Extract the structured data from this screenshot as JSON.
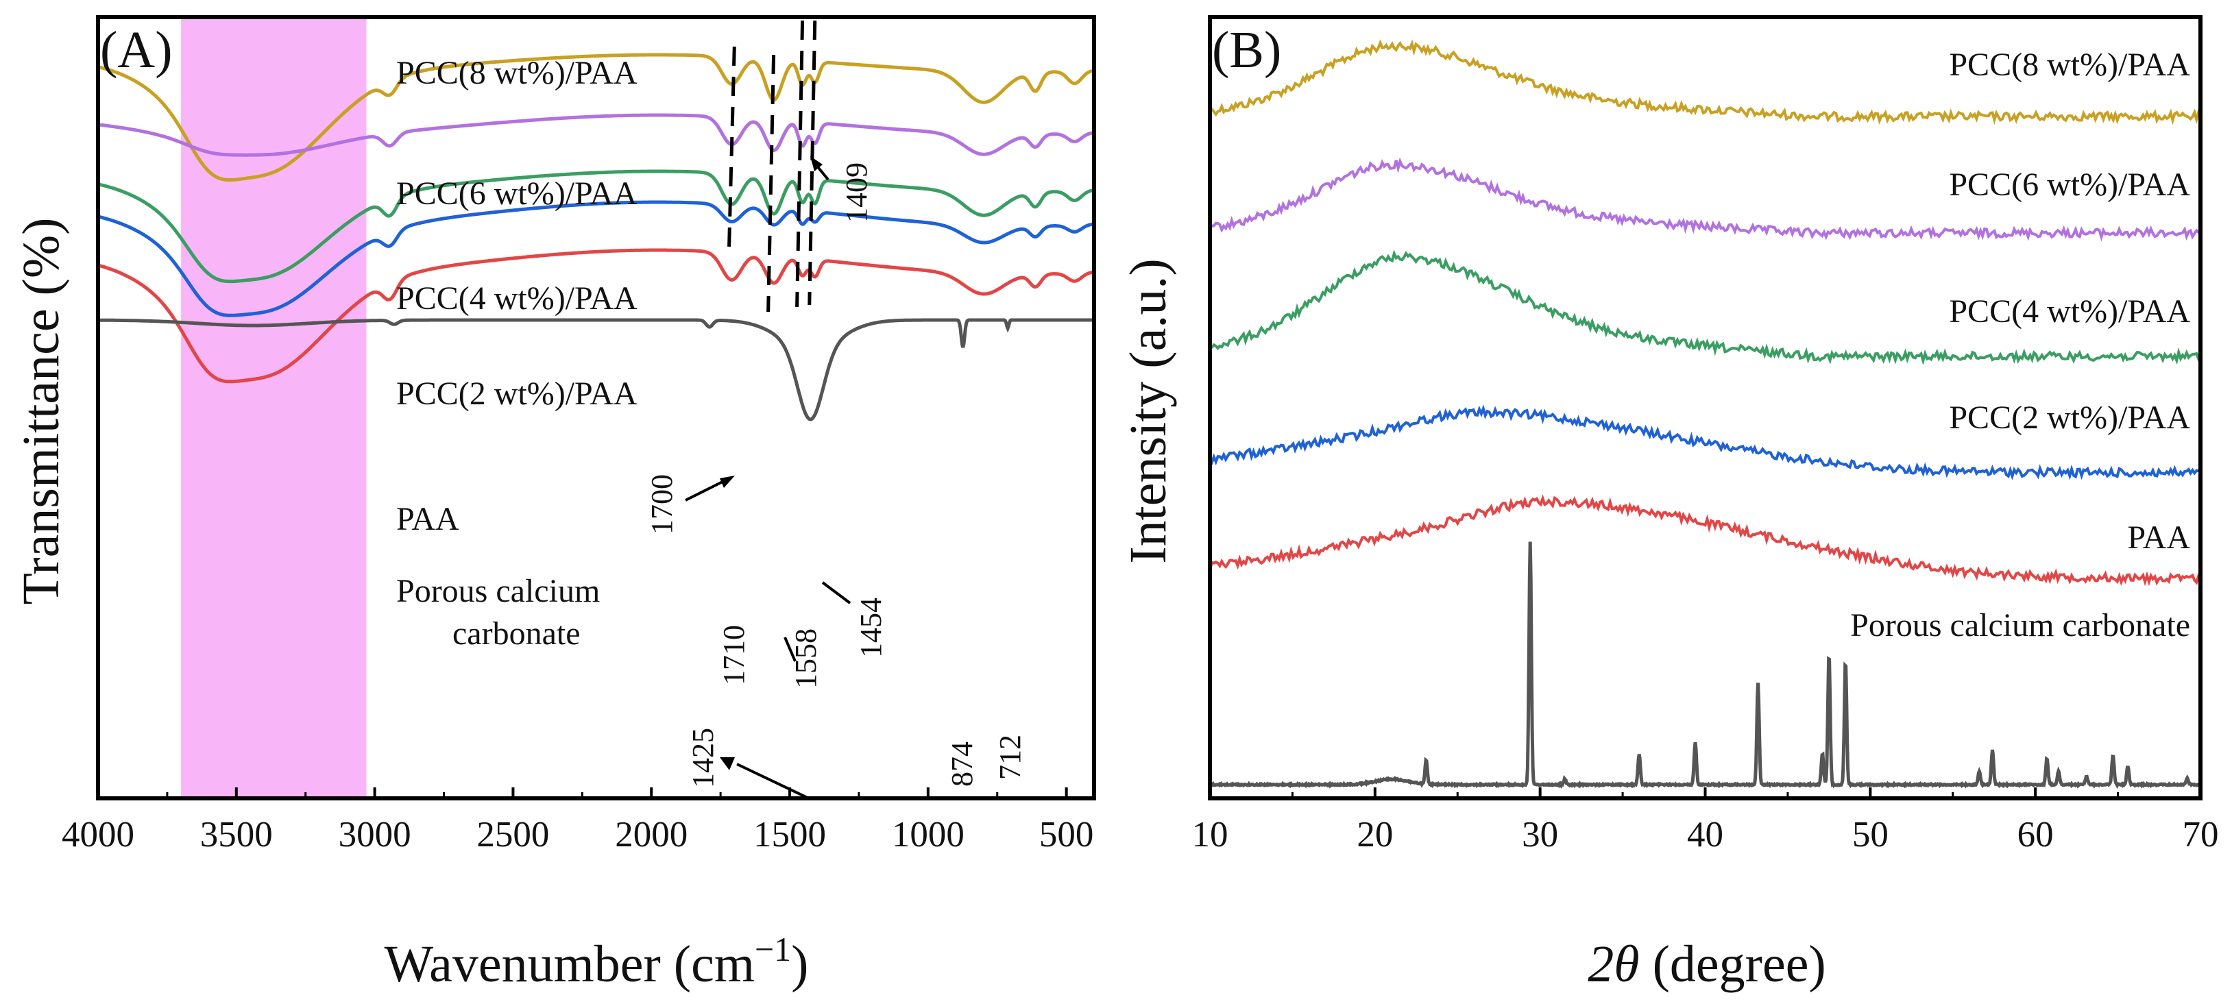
{
  "colors": {
    "pcc8": "#C9A021",
    "pcc6": "#B271E0",
    "pcc4": "#3A9E62",
    "pcc2": "#1F62D6",
    "paa": "#E24646",
    "caco3": "#555555",
    "highlight": "#F7A8F7"
  },
  "chart_data": [
    {
      "panel": "(A)",
      "type": "line",
      "xlabel_main": "Wavenumber (cm",
      "xlabel_sup": "−1",
      "xlabel_close": ")",
      "ylabel": "Transmittance (%)",
      "xlim": [
        4000,
        400
      ],
      "x_ticks": [
        "4000",
        "3500",
        "3000",
        "2500",
        "2000",
        "1500",
        "1000",
        "500"
      ],
      "x_tick_values": [
        4000,
        3500,
        3000,
        2500,
        2000,
        1500,
        1000,
        500
      ],
      "highlight_range": [
        3700,
        3030
      ],
      "reference_lines": [
        1700,
        1558,
        1454,
        1409
      ],
      "series": [
        {
          "name": "PCC(8 wt%)/PAA",
          "key": "pcc8"
        },
        {
          "name": "PCC(6 wt%)/PAA",
          "key": "pcc6"
        },
        {
          "name": "PCC(4 wt%)/PAA",
          "key": "pcc4"
        },
        {
          "name": "PCC(2 wt%)/PAA",
          "key": "pcc2"
        },
        {
          "name": "PAA",
          "key": "paa"
        },
        {
          "name": "Porous calcium carbonate",
          "key": "caco3",
          "label_line1": "Porous calcium",
          "label_line2": "carbonate"
        }
      ],
      "annotations": [
        "1409",
        "1700",
        "1710",
        "1558",
        "1454",
        "1425",
        "874",
        "712"
      ]
    },
    {
      "panel": "(B)",
      "type": "line",
      "xlabel_italic": "2θ",
      "xlabel_rest": " (degree)",
      "ylabel": "Intensity (a.u.)",
      "xlim": [
        10,
        70
      ],
      "x_ticks": [
        "10",
        "20",
        "30",
        "40",
        "50",
        "60",
        "70"
      ],
      "x_tick_values": [
        10,
        20,
        30,
        40,
        50,
        60,
        70
      ],
      "series": [
        {
          "name": "PCC(8 wt%)/PAA",
          "key": "pcc8"
        },
        {
          "name": "PCC(6 wt%)/PAA",
          "key": "pcc6"
        },
        {
          "name": "PCC(4 wt%)/PAA",
          "key": "pcc4"
        },
        {
          "name": "PCC(2 wt%)/PAA",
          "key": "pcc2"
        },
        {
          "name": "PAA",
          "key": "paa"
        },
        {
          "name": "Porous calcium carbonate",
          "key": "caco3"
        }
      ],
      "caco3_peaks_2theta": [
        23.1,
        29.4,
        31.5,
        36.0,
        39.4,
        43.2,
        47.1,
        47.5,
        48.5,
        56.6,
        57.4,
        60.7,
        61.4,
        63.1,
        64.7,
        65.6,
        69.2
      ]
    }
  ]
}
